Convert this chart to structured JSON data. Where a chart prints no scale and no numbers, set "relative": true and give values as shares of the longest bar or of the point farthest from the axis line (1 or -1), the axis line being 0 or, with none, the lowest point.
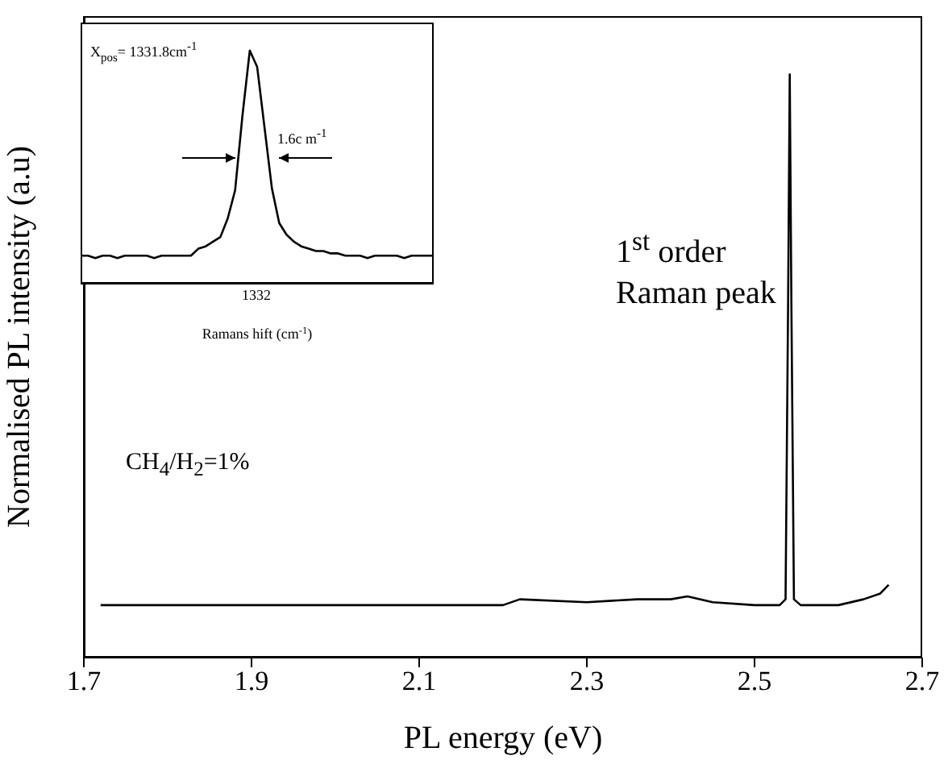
{
  "chart_data": [
    {
      "type": "line",
      "xlabel": "PL energy (eV)",
      "ylabel": "Normalised PL intensity (a.u)",
      "relative": true,
      "xlim": [
        1.7,
        2.7
      ],
      "xticks": [
        1.7,
        1.9,
        2.1,
        2.3,
        2.5,
        2.7
      ],
      "marker": "none",
      "line_style": "solid",
      "annotations": [
        "1$^{st}$ order Raman peak",
        "CH$_{4}$/H$_{2}$=1%"
      ],
      "series": [
        {
          "color": "#000000",
          "x": [
            1.72,
            1.8,
            1.9,
            2.0,
            2.1,
            2.2,
            2.22,
            2.3,
            2.36,
            2.4,
            2.42,
            2.45,
            2.5,
            2.53,
            2.537,
            2.54,
            2.542,
            2.544,
            2.547,
            2.555,
            2.6,
            2.63,
            2.65,
            2.66
          ],
          "values": [
            0.09,
            0.09,
            0.09,
            0.09,
            0.09,
            0.09,
            0.1,
            0.095,
            0.1,
            0.1,
            0.105,
            0.095,
            0.09,
            0.09,
            0.1,
            0.6,
            1,
            0.6,
            0.1,
            0.09,
            0.09,
            0.1,
            0.11,
            0.125
          ]
        }
      ]
    },
    {
      "type": "line",
      "xlabel": "Ramans hift (cm$^{-1}$)",
      "relative": true,
      "categories": [
        null,
        null,
        null,
        null,
        null,
        null,
        null,
        null,
        null,
        null,
        null,
        null,
        null,
        null,
        null,
        null,
        null,
        null,
        null,
        null,
        null,
        null,
        null,
        null,
        null,
        null,
        null,
        null,
        null,
        null,
        null,
        null,
        null,
        null,
        null,
        null,
        null,
        null,
        null,
        null,
        null,
        null,
        null,
        null,
        null,
        null,
        null,
        null,
        null
      ],
      "marker": "none",
      "line_style": "solid",
      "annotations": [
        "X$_{pos}$= 1331.8cm$^{-1}$",
        "1.6c m$^{-1}$",
        "1332"
      ],
      "series": [
        {
          "color": "#000000",
          "values": [
            0.12,
            0.12,
            0.11,
            0.12,
            0.12,
            0.11,
            0.12,
            0.12,
            0.12,
            0.12,
            0.11,
            0.12,
            0.12,
            0.12,
            0.12,
            0.12,
            0.15,
            0.16,
            0.18,
            0.2,
            0.28,
            0.4,
            0.72,
            1,
            0.93,
            0.67,
            0.41,
            0.26,
            0.21,
            0.18,
            0.16,
            0.15,
            0.14,
            0.14,
            0.13,
            0.13,
            0.12,
            0.12,
            0.12,
            0.11,
            0.12,
            0.12,
            0.12,
            0.12,
            0.11,
            0.12,
            0.12,
            0.12,
            0.12
          ]
        }
      ]
    }
  ]
}
